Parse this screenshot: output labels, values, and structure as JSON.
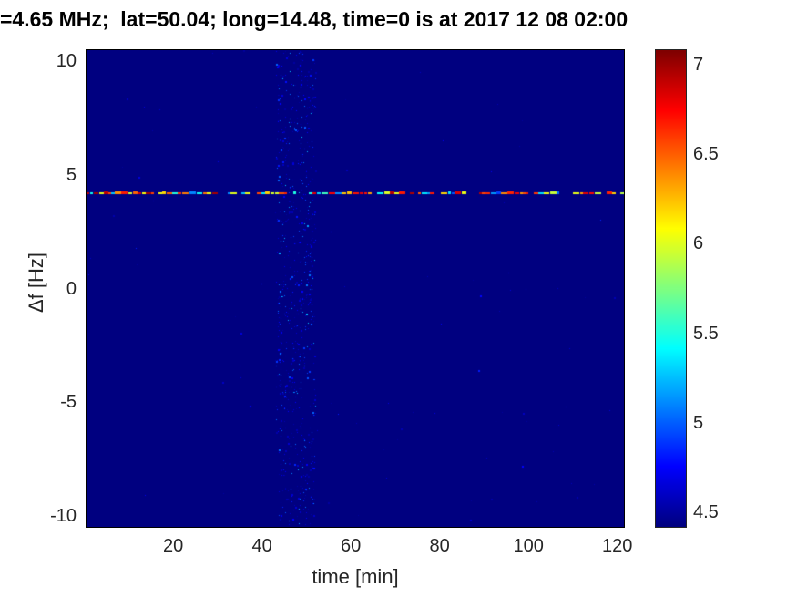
{
  "colors": {
    "figure_background": "#ffffff",
    "axis_text": "#262626",
    "title_text": "#000000"
  },
  "chart_data": {
    "type": "heatmap",
    "title": "=4.65 MHz;  lat=50.04; long=14.48, time=0 is at 2017 12 08 02:00",
    "xlabel": "time [min]",
    "ylabel": "Δf [Hz]",
    "xlim": [
      0.5,
      121.5
    ],
    "ylim": [
      -10.5,
      10.5
    ],
    "x_ticks": [
      20,
      40,
      60,
      80,
      100,
      120
    ],
    "y_ticks": [
      10,
      5,
      0,
      -5,
      -10
    ],
    "colormap": "jet",
    "colorbar_ticks": [
      7,
      6.5,
      6,
      5.5,
      5,
      4.5
    ],
    "color_range": [
      4.42,
      7.08
    ],
    "background_value": 4.42,
    "grid": false,
    "legend": "colorbar-right",
    "features": [
      {
        "kind": "horizontal-line",
        "description": "dashed multicolor Doppler trace (mostly yellow/orange, cyan patches near 43-54 min, occasional gaps)",
        "y": 4.2,
        "x_range": [
          0.5,
          121.5
        ],
        "value_range": [
          4.9,
          7.0
        ],
        "cyan_band_x": [
          42,
          54
        ]
      },
      {
        "kind": "vertical-speckle-band",
        "description": "faint blue noise speckles spanning all frequencies",
        "x_range": [
          43,
          52
        ],
        "y_range": [
          -10.5,
          10.5
        ],
        "value_range": [
          4.5,
          5.4
        ],
        "count": 750
      },
      {
        "kind": "sparse-speckles",
        "description": "very faint isolated dots over the whole map",
        "x_range": [
          0.5,
          121.5
        ],
        "y_range": [
          -10.5,
          10.5
        ],
        "value_range": [
          4.48,
          4.9
        ],
        "count": 90
      }
    ]
  }
}
